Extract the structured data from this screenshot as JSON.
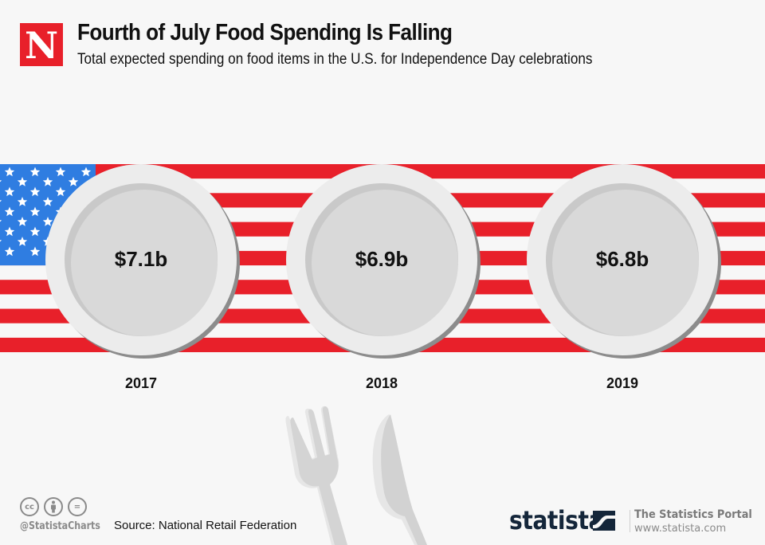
{
  "header": {
    "logo_letter": "N",
    "title": "Fourth of July Food Spending Is Falling",
    "subtitle": "Total expected spending on food items in the U.S. for Independence Day celebrations"
  },
  "colors": {
    "brand_red": "#e8202a",
    "flag_red": "#e8202a",
    "flag_blue": "#2f7de1",
    "plate_rim": "#ececec",
    "plate_center": "#d9d9d9",
    "statista_navy": "#14263a"
  },
  "chart_data": {
    "type": "table",
    "title": "Fourth of July Food Spending Is Falling",
    "subtitle": "Total expected spending on food items in the U.S. for Independence Day celebrations",
    "categories": [
      "2017",
      "2018",
      "2019"
    ],
    "values": [
      7.1,
      6.9,
      6.8
    ],
    "value_labels": [
      "$7.1b",
      "$6.9b",
      "$6.8b"
    ],
    "unit": "billion U.S. dollars",
    "xlabel": "",
    "ylabel": ""
  },
  "footer": {
    "license_icons": [
      "cc-icon",
      "attribution-icon",
      "no-derivatives-icon"
    ],
    "cc_label": "cc",
    "nd_label": "=",
    "handle": "@StatistaCharts",
    "source": "Source: National Retail Federation",
    "brand": "statista",
    "portal_title": "The Statistics Portal",
    "portal_url": "www.statista.com"
  }
}
